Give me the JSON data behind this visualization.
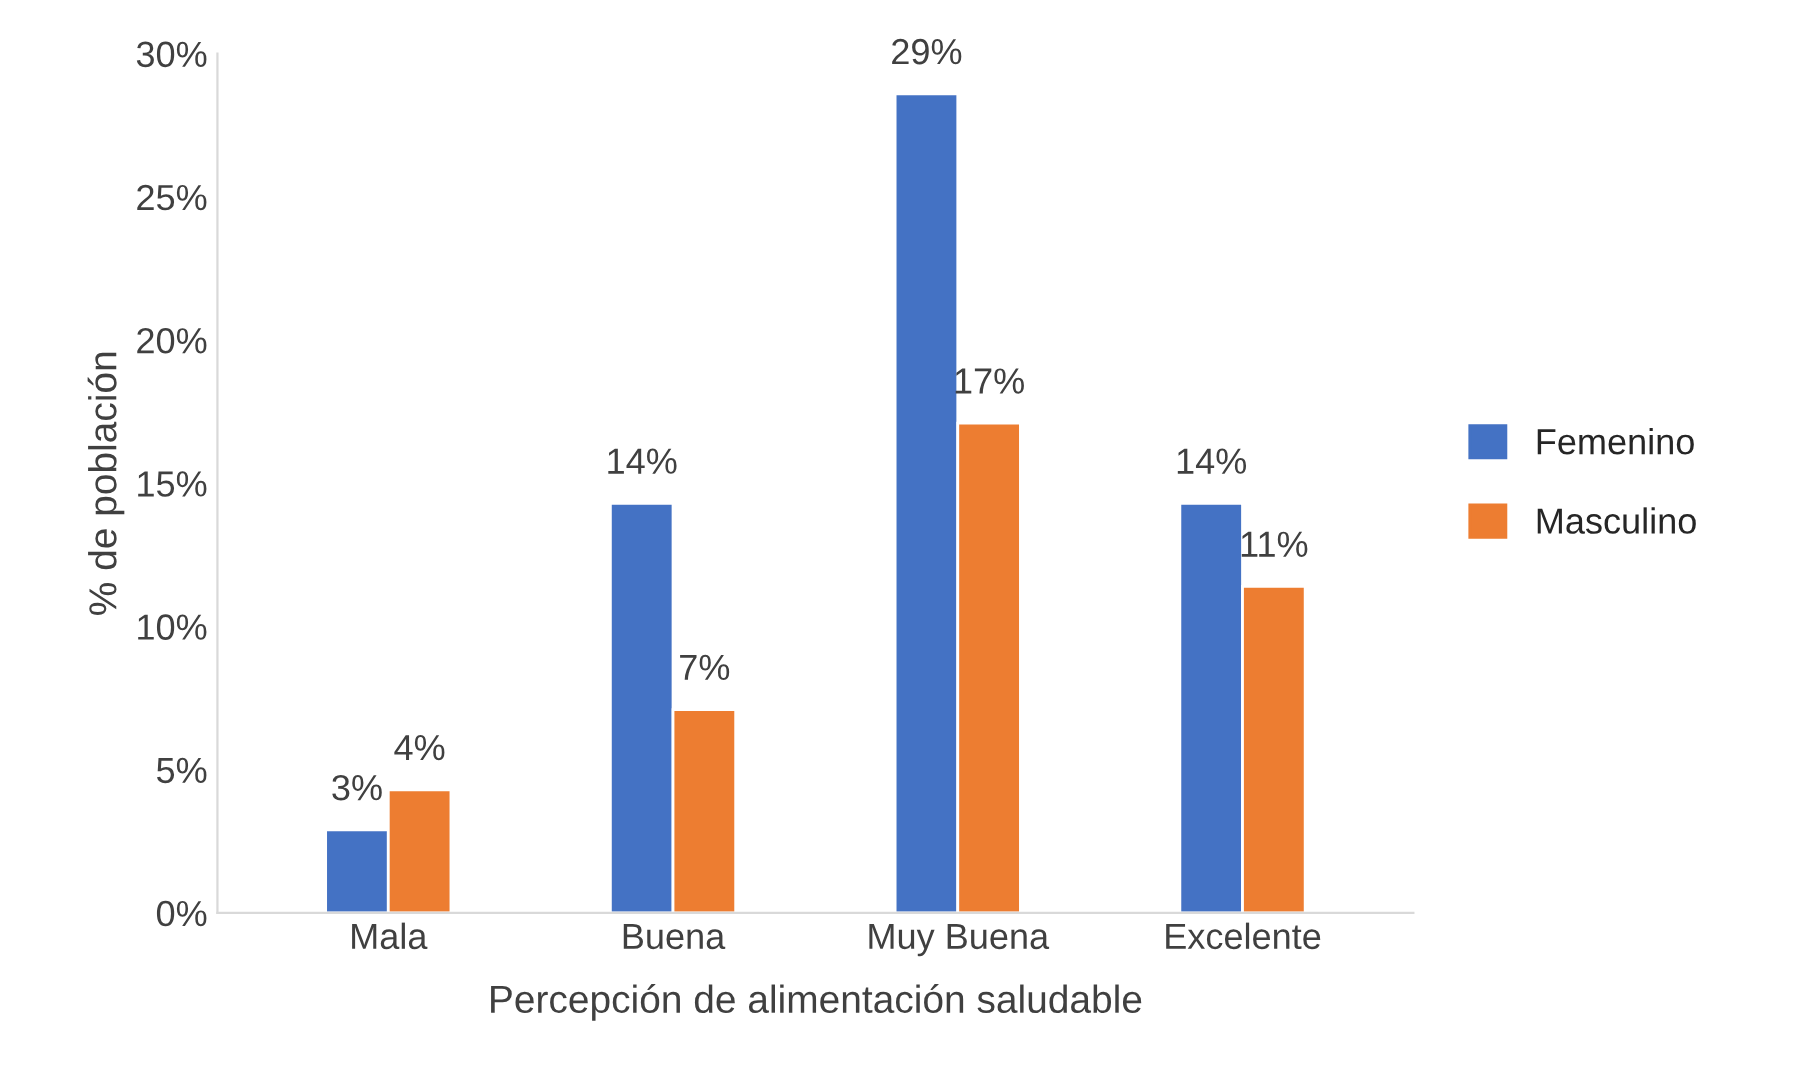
{
  "chart_data": {
    "type": "bar",
    "xlabel": "Percepción de alimentación saludable",
    "ylabel": "% de población",
    "categories": [
      "Mala",
      "Buena",
      "Muy Buena",
      "Excelente"
    ],
    "series": [
      {
        "name": "Femenino",
        "color": "#4472c4",
        "values": [
          2.9,
          14.3,
          28.6,
          14.3
        ],
        "value_labels": [
          "3%",
          "14%",
          "29%",
          "14%"
        ]
      },
      {
        "name": "Masculino",
        "color": "#ed7d31",
        "values": [
          4.3,
          7.1,
          17.1,
          11.4
        ],
        "value_labels": [
          "4%",
          "7%",
          "17%",
          "11%"
        ]
      }
    ],
    "ylim": [
      0,
      30
    ],
    "yticks": [
      {
        "value": 0,
        "label": "0%"
      },
      {
        "value": 5,
        "label": "5%"
      },
      {
        "value": 10,
        "label": "10%"
      },
      {
        "value": 15,
        "label": "15%"
      },
      {
        "value": 20,
        "label": "20%"
      },
      {
        "value": 25,
        "label": "25%"
      },
      {
        "value": 30,
        "label": "30%"
      }
    ],
    "grid": false,
    "legend": "right"
  }
}
